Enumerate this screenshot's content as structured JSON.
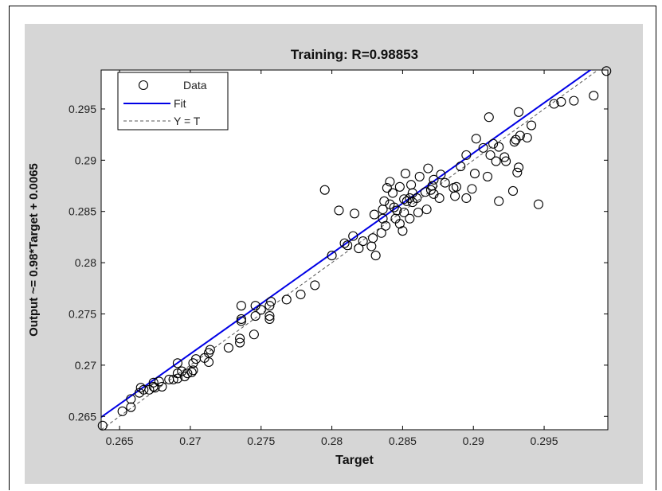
{
  "chart_data": {
    "type": "scatter",
    "title": "Training: R=0.98853",
    "xlabel": "Target",
    "ylabel": "Output ~= 0.98*Target + 0.0065",
    "xlim": [
      0.2637,
      0.2995
    ],
    "ylim": [
      0.2637,
      0.2988
    ],
    "xticks": [
      0.265,
      0.27,
      0.275,
      0.28,
      0.285,
      0.29,
      0.295
    ],
    "yticks": [
      0.265,
      0.27,
      0.275,
      0.28,
      0.285,
      0.29,
      0.295
    ],
    "xtick_labels": [
      "0.265",
      "0.27",
      "0.275",
      "0.28",
      "0.285",
      "0.29",
      "0.295"
    ],
    "ytick_labels": [
      "0.265",
      "0.27",
      "0.275",
      "0.28",
      "0.285",
      "0.29",
      "0.295"
    ],
    "grid": false,
    "legend_position": "top-left",
    "series": [
      {
        "name": "Data",
        "kind": "scatter",
        "marker": "open-circle",
        "color": "#000000",
        "points": [
          [
            0.2638,
            0.2641
          ],
          [
            0.2652,
            0.2655
          ],
          [
            0.2658,
            0.2659
          ],
          [
            0.2658,
            0.2667
          ],
          [
            0.2664,
            0.2673
          ],
          [
            0.2665,
            0.2678
          ],
          [
            0.2667,
            0.2676
          ],
          [
            0.2671,
            0.2676
          ],
          [
            0.2674,
            0.2679
          ],
          [
            0.2674,
            0.2683
          ],
          [
            0.2675,
            0.2678
          ],
          [
            0.2678,
            0.2684
          ],
          [
            0.268,
            0.2679
          ],
          [
            0.2685,
            0.2686
          ],
          [
            0.2688,
            0.2686
          ],
          [
            0.2691,
            0.2687
          ],
          [
            0.2691,
            0.2692
          ],
          [
            0.2691,
            0.2702
          ],
          [
            0.2694,
            0.2694
          ],
          [
            0.2696,
            0.2689
          ],
          [
            0.2698,
            0.2692
          ],
          [
            0.2701,
            0.2693
          ],
          [
            0.2702,
            0.2695
          ],
          [
            0.2702,
            0.2702
          ],
          [
            0.2704,
            0.2706
          ],
          [
            0.271,
            0.2707
          ],
          [
            0.2713,
            0.2703
          ],
          [
            0.2713,
            0.2712
          ],
          [
            0.2714,
            0.2715
          ],
          [
            0.2727,
            0.2717
          ],
          [
            0.2735,
            0.2722
          ],
          [
            0.2735,
            0.2726
          ],
          [
            0.2736,
            0.2743
          ],
          [
            0.2736,
            0.2745
          ],
          [
            0.2736,
            0.2758
          ],
          [
            0.2745,
            0.273
          ],
          [
            0.2746,
            0.2748
          ],
          [
            0.2746,
            0.2758
          ],
          [
            0.275,
            0.2754
          ],
          [
            0.2756,
            0.2745
          ],
          [
            0.2756,
            0.2748
          ],
          [
            0.2756,
            0.2758
          ],
          [
            0.2757,
            0.2762
          ],
          [
            0.2768,
            0.2764
          ],
          [
            0.2778,
            0.2769
          ],
          [
            0.2788,
            0.2778
          ],
          [
            0.2795,
            0.2871
          ],
          [
            0.28,
            0.2807
          ],
          [
            0.2805,
            0.2851
          ],
          [
            0.2809,
            0.2819
          ],
          [
            0.2811,
            0.2817
          ],
          [
            0.2815,
            0.2826
          ],
          [
            0.2816,
            0.2848
          ],
          [
            0.2819,
            0.2814
          ],
          [
            0.2822,
            0.2821
          ],
          [
            0.2828,
            0.2816
          ],
          [
            0.2829,
            0.2824
          ],
          [
            0.283,
            0.2847
          ],
          [
            0.2831,
            0.2807
          ],
          [
            0.2835,
            0.2829
          ],
          [
            0.2836,
            0.2843
          ],
          [
            0.2836,
            0.2852
          ],
          [
            0.2837,
            0.286
          ],
          [
            0.2838,
            0.2836
          ],
          [
            0.2839,
            0.2873
          ],
          [
            0.2841,
            0.2879
          ],
          [
            0.2841,
            0.2857
          ],
          [
            0.2843,
            0.2868
          ],
          [
            0.2844,
            0.2854
          ],
          [
            0.2845,
            0.2843
          ],
          [
            0.2846,
            0.2851
          ],
          [
            0.2848,
            0.2874
          ],
          [
            0.2848,
            0.2838
          ],
          [
            0.285,
            0.2831
          ],
          [
            0.2851,
            0.2862
          ],
          [
            0.2851,
            0.2849
          ],
          [
            0.2852,
            0.2887
          ],
          [
            0.2853,
            0.286
          ],
          [
            0.2855,
            0.2843
          ],
          [
            0.2855,
            0.2863
          ],
          [
            0.2856,
            0.2876
          ],
          [
            0.2857,
            0.2868
          ],
          [
            0.2857,
            0.2859
          ],
          [
            0.286,
            0.2863
          ],
          [
            0.2861,
            0.2849
          ],
          [
            0.2862,
            0.2884
          ],
          [
            0.2866,
            0.2869
          ],
          [
            0.2867,
            0.2852
          ],
          [
            0.2868,
            0.2892
          ],
          [
            0.287,
            0.2871
          ],
          [
            0.2871,
            0.2875
          ],
          [
            0.2872,
            0.2867
          ],
          [
            0.2872,
            0.2881
          ],
          [
            0.2876,
            0.2863
          ],
          [
            0.2877,
            0.2886
          ],
          [
            0.288,
            0.2878
          ],
          [
            0.2886,
            0.2873
          ],
          [
            0.2887,
            0.2865
          ],
          [
            0.2888,
            0.2874
          ],
          [
            0.2891,
            0.2894
          ],
          [
            0.2895,
            0.2863
          ],
          [
            0.2895,
            0.2905
          ],
          [
            0.2899,
            0.2872
          ],
          [
            0.2901,
            0.2887
          ],
          [
            0.2902,
            0.2921
          ],
          [
            0.2907,
            0.2912
          ],
          [
            0.291,
            0.2884
          ],
          [
            0.2911,
            0.2942
          ],
          [
            0.2912,
            0.2905
          ],
          [
            0.2914,
            0.2916
          ],
          [
            0.2916,
            0.2899
          ],
          [
            0.2918,
            0.286
          ],
          [
            0.2918,
            0.2913
          ],
          [
            0.2922,
            0.2903
          ],
          [
            0.2923,
            0.2899
          ],
          [
            0.2928,
            0.287
          ],
          [
            0.2929,
            0.2918
          ],
          [
            0.293,
            0.292
          ],
          [
            0.2931,
            0.2888
          ],
          [
            0.2932,
            0.2893
          ],
          [
            0.2932,
            0.2947
          ],
          [
            0.2933,
            0.2924
          ],
          [
            0.2938,
            0.2922
          ],
          [
            0.2941,
            0.2934
          ],
          [
            0.2946,
            0.2857
          ],
          [
            0.2957,
            0.2955
          ],
          [
            0.2962,
            0.2957
          ],
          [
            0.2971,
            0.2958
          ],
          [
            0.2985,
            0.2963
          ],
          [
            0.2994,
            0.2987
          ]
        ]
      },
      {
        "name": "Fit",
        "kind": "line",
        "color": "#0000e6",
        "slope": 0.98,
        "intercept": 0.0065
      },
      {
        "name": "Y = T",
        "kind": "line",
        "style": "dashed",
        "color": "#555555",
        "slope": 1.0,
        "intercept": 0.0
      }
    ]
  }
}
